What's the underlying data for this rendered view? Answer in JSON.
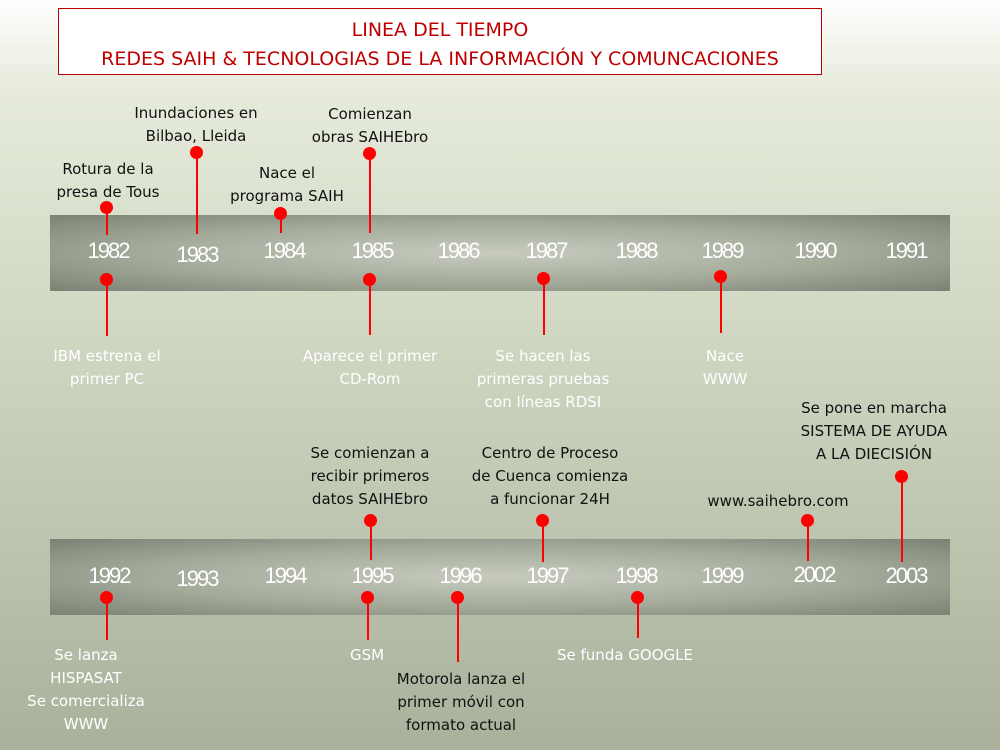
{
  "title": {
    "line1": "LINEA DEL TIEMPO",
    "line2": "REDES SAIH & TECNOLOGIAS DE LA INFORMACIÓN  Y COMUNCACIONES"
  },
  "timeline1": {
    "years": [
      "1982",
      "1983",
      "1984",
      "1985",
      "1986",
      "1987",
      "1988",
      "1989",
      "1990",
      "1991"
    ],
    "events_above": [
      {
        "year": "1982",
        "lines": [
          "Rotura de la",
          "presa de Tous"
        ]
      },
      {
        "year": "1983",
        "lines": [
          "Inundaciones en",
          "Bilbao, Lleida"
        ]
      },
      {
        "year": "1984",
        "lines": [
          "Nace el",
          "programa SAIH"
        ]
      },
      {
        "year": "1985",
        "lines": [
          "Comienzan",
          "obras SAIHEbro"
        ]
      }
    ],
    "events_below": [
      {
        "year": "1982",
        "lines": [
          "IBM estrena el",
          "primer PC"
        ]
      },
      {
        "year": "1985",
        "lines": [
          "Aparece el primer",
          "CD-Rom"
        ]
      },
      {
        "year": "1987",
        "lines": [
          "Se hacen las",
          "primeras pruebas",
          "con líneas RDSI"
        ]
      },
      {
        "year": "1989",
        "lines": [
          "Nace",
          "WWW"
        ]
      }
    ]
  },
  "timeline2": {
    "years": [
      "1992",
      "1993",
      "1994",
      "1995",
      "1996",
      "1997",
      "1998",
      "1999",
      "2002",
      "2003"
    ],
    "events_above": [
      {
        "year": "1995",
        "lines": [
          "Se comienzan a",
          "recibir primeros",
          "datos SAIHEbro"
        ]
      },
      {
        "year": "1997",
        "lines": [
          "Centro de Proceso",
          "de Cuenca comienza",
          "a funcionar 24H"
        ]
      },
      {
        "year": "2002",
        "lines": [
          "www.saihebro.com"
        ]
      },
      {
        "year": "2003",
        "lines": [
          "Se pone en marcha",
          "SISTEMA DE AYUDA",
          "A LA DIECISIÓN"
        ]
      }
    ],
    "events_below": [
      {
        "year": "1992",
        "lines": [
          "Se lanza",
          "HISPASAT",
          "Se comercializa",
          "WWW"
        ]
      },
      {
        "year": "1995",
        "lines": [
          "GSM"
        ]
      },
      {
        "year": "1996",
        "lines": [
          "Motorola lanza el",
          "primer móvil con",
          "formato actual"
        ]
      },
      {
        "year": "1998",
        "lines": [
          "Se funda GOOGLE"
        ]
      }
    ]
  },
  "colors": {
    "marker": "#ff0000",
    "title_text": "#c00000",
    "year_text": "#ffffff"
  }
}
